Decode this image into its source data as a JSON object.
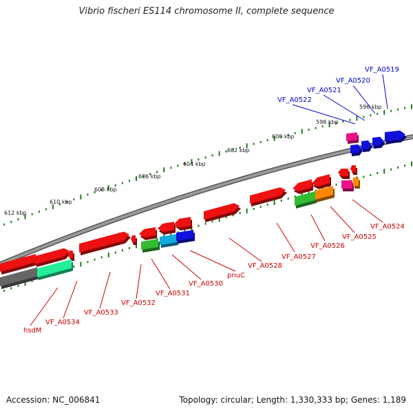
{
  "title": "Vibrio fischeri ES114 chromosome II, complete sequence",
  "footer": {
    "accession": "Accession: NC_006841",
    "summary": "Topology: circular; Length: 1,330,333 bp; Genes: 1,189"
  },
  "scale_labels": [
    "612 kbp",
    "610 kbp",
    "608 kbp",
    "606 kbp",
    "604 kbp",
    "602 kbp",
    "600 kbp",
    "598 kbp",
    "596 kbp"
  ],
  "top_labels": [
    "VF_A0519",
    "VF_A0520",
    "VF_A0521",
    "VF_A0522"
  ],
  "bottom_labels": [
    "VF_A0524",
    "VF_A0525",
    "VF_A0526",
    "VF_A0527",
    "VF_A0528",
    "pnuC",
    "VF_A0530",
    "VF_A0531",
    "VF_A0532",
    "VF_A0533",
    "VF_A0534",
    "hsdM"
  ],
  "colors": {
    "backbone": "#8a8a8a",
    "tick": "#1a7a1a",
    "forward_label": "#0000cc",
    "reverse_label": "#cc0000",
    "red": "#ee1111",
    "blue": "#1111dd",
    "magenta": "#ee1188",
    "green": "#33bb33",
    "cyan": "#11aadd",
    "orange": "#ff8800",
    "gray": "#666666",
    "aqua": "#22ee99"
  }
}
